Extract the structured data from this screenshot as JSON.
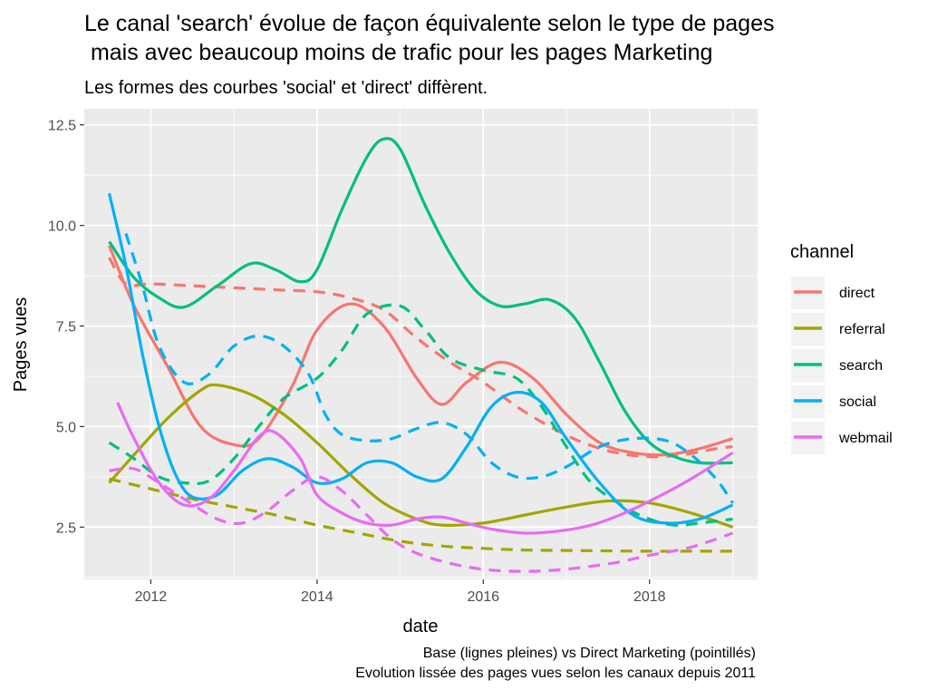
{
  "chart_data": {
    "type": "line",
    "title": "Le canal 'search' évolue de façon équivalente selon le type de pages\n mais avec beaucoup moins de trafic pour les pages Marketing",
    "subtitle": "Les formes des courbes 'social' et 'direct' diffèrent.",
    "caption_line1": "Base (lignes pleines) vs Direct Marketing (pointillés)",
    "caption_line2": "Evolution lissée des pages vues selon les canaux depuis 2011",
    "xlabel": "date",
    "ylabel": "Pages vues",
    "xlim": [
      2011.2,
      2019.3
    ],
    "ylim": [
      1.2,
      12.9
    ],
    "x_ticks": [
      2012,
      2014,
      2016,
      2018
    ],
    "x_tick_labels": [
      "2012",
      "2014",
      "2016",
      "2018"
    ],
    "y_ticks": [
      2.5,
      5.0,
      7.5,
      10.0,
      12.5
    ],
    "y_tick_labels": [
      "2.5",
      "5.0",
      "7.5",
      "10.0",
      "12.5"
    ],
    "grid": true,
    "legend": {
      "title": "channel",
      "position": "right"
    },
    "series": [
      {
        "name": "direct",
        "color": "#F8766D",
        "linetype": "solid",
        "points": [
          [
            2011.5,
            9.5
          ],
          [
            2011.8,
            8.0
          ],
          [
            2012.2,
            6.5
          ],
          [
            2012.6,
            5.0
          ],
          [
            2013.0,
            4.55
          ],
          [
            2013.3,
            4.7
          ],
          [
            2013.7,
            6.0
          ],
          [
            2014.0,
            7.4
          ],
          [
            2014.4,
            8.05
          ],
          [
            2014.8,
            7.5
          ],
          [
            2015.2,
            6.2
          ],
          [
            2015.5,
            5.55
          ],
          [
            2015.8,
            6.1
          ],
          [
            2016.2,
            6.6
          ],
          [
            2016.6,
            6.2
          ],
          [
            2017.0,
            5.3
          ],
          [
            2017.4,
            4.6
          ],
          [
            2017.8,
            4.35
          ],
          [
            2018.2,
            4.3
          ],
          [
            2018.6,
            4.45
          ],
          [
            2019.0,
            4.7
          ]
        ]
      },
      {
        "name": "direct",
        "color": "#F8766D",
        "linetype": "dashed",
        "points": [
          [
            2011.5,
            9.2
          ],
          [
            2011.7,
            8.55
          ],
          [
            2012.0,
            8.55
          ],
          [
            2012.5,
            8.5
          ],
          [
            2013.0,
            8.45
          ],
          [
            2013.5,
            8.4
          ],
          [
            2014.0,
            8.35
          ],
          [
            2014.4,
            8.2
          ],
          [
            2014.8,
            7.9
          ],
          [
            2015.2,
            7.2
          ],
          [
            2015.6,
            6.6
          ],
          [
            2016.0,
            6.1
          ],
          [
            2016.4,
            5.5
          ],
          [
            2016.8,
            5.0
          ],
          [
            2017.2,
            4.6
          ],
          [
            2017.6,
            4.35
          ],
          [
            2018.0,
            4.25
          ],
          [
            2018.4,
            4.3
          ],
          [
            2018.8,
            4.45
          ],
          [
            2019.0,
            4.5
          ]
        ]
      },
      {
        "name": "referral",
        "color": "#A3A500",
        "linetype": "solid",
        "points": [
          [
            2011.5,
            3.6
          ],
          [
            2011.8,
            4.3
          ],
          [
            2012.2,
            5.2
          ],
          [
            2012.6,
            5.9
          ],
          [
            2012.8,
            6.03
          ],
          [
            2013.2,
            5.8
          ],
          [
            2013.6,
            5.3
          ],
          [
            2014.0,
            4.6
          ],
          [
            2014.4,
            3.8
          ],
          [
            2014.8,
            3.1
          ],
          [
            2015.2,
            2.7
          ],
          [
            2015.5,
            2.55
          ],
          [
            2016.0,
            2.6
          ],
          [
            2016.5,
            2.8
          ],
          [
            2017.0,
            3.0
          ],
          [
            2017.5,
            3.15
          ],
          [
            2018.0,
            3.1
          ],
          [
            2018.5,
            2.85
          ],
          [
            2019.0,
            2.5
          ]
        ]
      },
      {
        "name": "referral",
        "color": "#A3A500",
        "linetype": "dashed",
        "points": [
          [
            2011.5,
            3.7
          ],
          [
            2012.0,
            3.45
          ],
          [
            2012.5,
            3.2
          ],
          [
            2013.0,
            3.0
          ],
          [
            2013.5,
            2.8
          ],
          [
            2014.0,
            2.55
          ],
          [
            2014.5,
            2.35
          ],
          [
            2015.0,
            2.15
          ],
          [
            2015.5,
            2.03
          ],
          [
            2016.0,
            1.97
          ],
          [
            2016.5,
            1.93
          ],
          [
            2017.0,
            1.92
          ],
          [
            2017.5,
            1.91
          ],
          [
            2018.0,
            1.9
          ],
          [
            2018.5,
            1.9
          ],
          [
            2019.0,
            1.9
          ]
        ]
      },
      {
        "name": "search",
        "color": "#00BF7D",
        "linetype": "solid",
        "points": [
          [
            2011.5,
            9.6
          ],
          [
            2011.8,
            8.7
          ],
          [
            2012.1,
            8.2
          ],
          [
            2012.4,
            7.97
          ],
          [
            2012.8,
            8.5
          ],
          [
            2013.2,
            9.05
          ],
          [
            2013.5,
            8.9
          ],
          [
            2013.8,
            8.6
          ],
          [
            2014.0,
            8.9
          ],
          [
            2014.3,
            10.4
          ],
          [
            2014.6,
            11.7
          ],
          [
            2014.8,
            12.15
          ],
          [
            2015.0,
            11.9
          ],
          [
            2015.3,
            10.5
          ],
          [
            2015.6,
            9.3
          ],
          [
            2015.9,
            8.4
          ],
          [
            2016.2,
            8.0
          ],
          [
            2016.5,
            8.05
          ],
          [
            2016.8,
            8.15
          ],
          [
            2017.1,
            7.7
          ],
          [
            2017.4,
            6.6
          ],
          [
            2017.7,
            5.4
          ],
          [
            2018.0,
            4.6
          ],
          [
            2018.3,
            4.25
          ],
          [
            2018.6,
            4.1
          ],
          [
            2019.0,
            4.1
          ]
        ]
      },
      {
        "name": "search",
        "color": "#00BF7D",
        "linetype": "dashed",
        "points": [
          [
            2011.5,
            4.6
          ],
          [
            2011.8,
            4.2
          ],
          [
            2012.1,
            3.75
          ],
          [
            2012.4,
            3.6
          ],
          [
            2012.7,
            3.65
          ],
          [
            2013.0,
            4.2
          ],
          [
            2013.3,
            5.0
          ],
          [
            2013.6,
            5.7
          ],
          [
            2014.0,
            6.2
          ],
          [
            2014.3,
            6.9
          ],
          [
            2014.6,
            7.8
          ],
          [
            2015.0,
            8.0
          ],
          [
            2015.3,
            7.4
          ],
          [
            2015.6,
            6.7
          ],
          [
            2016.0,
            6.4
          ],
          [
            2016.4,
            6.2
          ],
          [
            2016.7,
            5.5
          ],
          [
            2017.0,
            4.5
          ],
          [
            2017.3,
            3.6
          ],
          [
            2017.7,
            3.0
          ],
          [
            2018.0,
            2.7
          ],
          [
            2018.3,
            2.55
          ],
          [
            2018.6,
            2.6
          ],
          [
            2019.0,
            2.7
          ]
        ]
      },
      {
        "name": "social",
        "color": "#00B0F6",
        "linetype": "solid",
        "points": [
          [
            2011.5,
            10.8
          ],
          [
            2011.7,
            9.0
          ],
          [
            2011.9,
            6.8
          ],
          [
            2012.1,
            5.0
          ],
          [
            2012.3,
            3.8
          ],
          [
            2012.5,
            3.25
          ],
          [
            2012.8,
            3.3
          ],
          [
            2013.1,
            3.9
          ],
          [
            2013.4,
            4.2
          ],
          [
            2013.7,
            4.0
          ],
          [
            2014.0,
            3.6
          ],
          [
            2014.3,
            3.7
          ],
          [
            2014.6,
            4.1
          ],
          [
            2014.9,
            4.1
          ],
          [
            2015.2,
            3.75
          ],
          [
            2015.5,
            3.7
          ],
          [
            2015.8,
            4.5
          ],
          [
            2016.1,
            5.5
          ],
          [
            2016.4,
            5.85
          ],
          [
            2016.7,
            5.6
          ],
          [
            2017.0,
            4.7
          ],
          [
            2017.4,
            3.6
          ],
          [
            2017.8,
            2.8
          ],
          [
            2018.2,
            2.6
          ],
          [
            2018.6,
            2.7
          ],
          [
            2019.0,
            3.05
          ]
        ]
      },
      {
        "name": "social",
        "color": "#00B0F6",
        "linetype": "dashed",
        "points": [
          [
            2011.7,
            9.8
          ],
          [
            2011.9,
            8.5
          ],
          [
            2012.1,
            7.0
          ],
          [
            2012.4,
            6.1
          ],
          [
            2012.7,
            6.3
          ],
          [
            2013.0,
            7.0
          ],
          [
            2013.3,
            7.25
          ],
          [
            2013.6,
            7.0
          ],
          [
            2013.9,
            6.3
          ],
          [
            2014.1,
            5.3
          ],
          [
            2014.3,
            4.8
          ],
          [
            2014.6,
            4.65
          ],
          [
            2014.9,
            4.7
          ],
          [
            2015.2,
            4.95
          ],
          [
            2015.5,
            5.1
          ],
          [
            2015.8,
            4.8
          ],
          [
            2016.1,
            4.1
          ],
          [
            2016.4,
            3.75
          ],
          [
            2016.7,
            3.75
          ],
          [
            2017.0,
            4.0
          ],
          [
            2017.4,
            4.5
          ],
          [
            2017.8,
            4.7
          ],
          [
            2018.2,
            4.65
          ],
          [
            2018.5,
            4.3
          ],
          [
            2018.8,
            3.7
          ],
          [
            2019.0,
            3.1
          ]
        ]
      },
      {
        "name": "webmail",
        "color": "#E76BF3",
        "linetype": "solid",
        "points": [
          [
            2011.6,
            5.6
          ],
          [
            2011.8,
            4.7
          ],
          [
            2012.1,
            3.6
          ],
          [
            2012.4,
            3.05
          ],
          [
            2012.7,
            3.2
          ],
          [
            2013.0,
            3.9
          ],
          [
            2013.3,
            4.75
          ],
          [
            2013.5,
            4.85
          ],
          [
            2013.8,
            4.2
          ],
          [
            2014.0,
            3.3
          ],
          [
            2014.3,
            2.85
          ],
          [
            2014.6,
            2.6
          ],
          [
            2014.9,
            2.55
          ],
          [
            2015.2,
            2.7
          ],
          [
            2015.5,
            2.75
          ],
          [
            2015.8,
            2.6
          ],
          [
            2016.1,
            2.45
          ],
          [
            2016.5,
            2.35
          ],
          [
            2016.9,
            2.4
          ],
          [
            2017.3,
            2.55
          ],
          [
            2017.7,
            2.85
          ],
          [
            2018.1,
            3.25
          ],
          [
            2018.5,
            3.7
          ],
          [
            2019.0,
            4.35
          ]
        ]
      },
      {
        "name": "webmail",
        "color": "#E76BF3",
        "linetype": "dashed",
        "points": [
          [
            2011.5,
            3.9
          ],
          [
            2011.8,
            3.95
          ],
          [
            2012.1,
            3.6
          ],
          [
            2012.4,
            3.2
          ],
          [
            2012.8,
            2.7
          ],
          [
            2013.1,
            2.6
          ],
          [
            2013.4,
            2.9
          ],
          [
            2013.7,
            3.4
          ],
          [
            2014.0,
            3.75
          ],
          [
            2014.3,
            3.4
          ],
          [
            2014.6,
            2.8
          ],
          [
            2014.9,
            2.2
          ],
          [
            2015.2,
            1.85
          ],
          [
            2015.6,
            1.6
          ],
          [
            2016.0,
            1.45
          ],
          [
            2016.4,
            1.4
          ],
          [
            2016.8,
            1.42
          ],
          [
            2017.2,
            1.5
          ],
          [
            2017.6,
            1.62
          ],
          [
            2018.0,
            1.8
          ],
          [
            2018.5,
            2.0
          ],
          [
            2019.0,
            2.35
          ]
        ]
      }
    ]
  },
  "legend_items": [
    {
      "label": "direct",
      "color": "#F8766D"
    },
    {
      "label": "referral",
      "color": "#A3A500"
    },
    {
      "label": "search",
      "color": "#00BF7D"
    },
    {
      "label": "social",
      "color": "#00B0F6"
    },
    {
      "label": "webmail",
      "color": "#E76BF3"
    }
  ]
}
